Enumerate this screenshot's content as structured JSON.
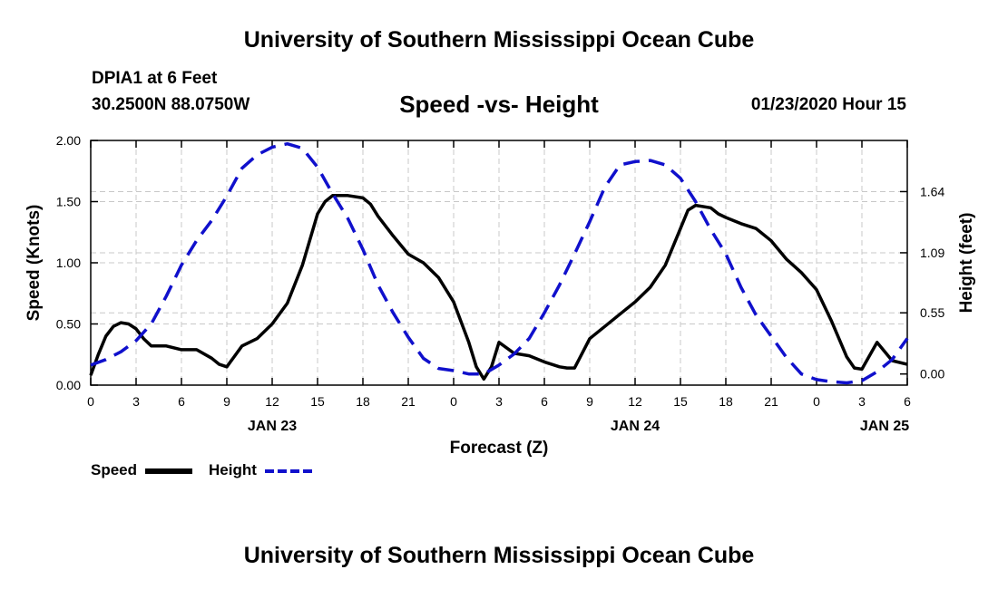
{
  "header": {
    "title": "University of Southern Mississippi Ocean Cube",
    "station": "DPIA1 at 6 Feet",
    "coordinates": "30.2500N 88.0750W",
    "datetime": "01/23/2020 Hour 15"
  },
  "footer": {
    "title": "University of Southern Mississippi Ocean Cube"
  },
  "chart_data": {
    "type": "line",
    "title": "Speed -vs- Height",
    "xlabel": "Forecast (Z)",
    "ylabel_left": "Speed (Knots)",
    "ylabel_right": "Height (feet)",
    "xlim": [
      0,
      54
    ],
    "ylim_left": [
      0,
      2
    ],
    "ylim_right": [
      -0.1,
      2.1
    ],
    "grid": true,
    "x_tick_values": [
      0,
      3,
      6,
      9,
      12,
      15,
      18,
      21,
      24,
      27,
      30,
      33,
      36,
      39,
      42,
      45,
      48,
      51,
      54
    ],
    "x_tick_labels": [
      "0",
      "3",
      "6",
      "9",
      "12",
      "15",
      "18",
      "21",
      "0",
      "3",
      "6",
      "9",
      "12",
      "15",
      "18",
      "21",
      "0",
      "3",
      "6"
    ],
    "y_left_ticks": [
      0,
      0.5,
      1,
      1.5,
      2
    ],
    "y_left_tick_labels": [
      "0.00",
      "0.50",
      "1.00",
      "1.50",
      "2.00"
    ],
    "y_right_ticks": [
      0,
      0.55,
      1.09,
      1.64
    ],
    "y_right_tick_labels": [
      "0.00",
      "0.55",
      "1.09",
      "1.64"
    ],
    "date_labels": [
      {
        "x": 12,
        "label": "JAN 23"
      },
      {
        "x": 36,
        "label": "JAN 24"
      },
      {
        "x": 52.5,
        "label": "JAN 25"
      }
    ],
    "series": [
      {
        "name": "Speed",
        "axis": "left",
        "color": "#000000",
        "style": "solid",
        "points": [
          [
            0,
            0.08
          ],
          [
            0.5,
            0.25
          ],
          [
            1,
            0.4
          ],
          [
            1.5,
            0.48
          ],
          [
            2,
            0.51
          ],
          [
            2.5,
            0.5
          ],
          [
            3,
            0.46
          ],
          [
            3.5,
            0.38
          ],
          [
            4,
            0.32
          ],
          [
            5,
            0.32
          ],
          [
            6,
            0.29
          ],
          [
            7,
            0.29
          ],
          [
            8,
            0.22
          ],
          [
            8.5,
            0.17
          ],
          [
            9,
            0.15
          ],
          [
            10,
            0.32
          ],
          [
            11,
            0.38
          ],
          [
            12,
            0.5
          ],
          [
            13,
            0.67
          ],
          [
            14,
            0.98
          ],
          [
            15,
            1.4
          ],
          [
            15.5,
            1.5
          ],
          [
            16,
            1.55
          ],
          [
            17,
            1.55
          ],
          [
            18,
            1.53
          ],
          [
            18.5,
            1.48
          ],
          [
            19,
            1.38
          ],
          [
            20,
            1.22
          ],
          [
            21,
            1.07
          ],
          [
            22,
            1.0
          ],
          [
            23,
            0.88
          ],
          [
            24,
            0.68
          ],
          [
            25,
            0.35
          ],
          [
            25.5,
            0.15
          ],
          [
            26,
            0.05
          ],
          [
            26.5,
            0.15
          ],
          [
            27,
            0.35
          ],
          [
            28,
            0.26
          ],
          [
            29,
            0.24
          ],
          [
            30,
            0.19
          ],
          [
            31,
            0.15
          ],
          [
            31.5,
            0.14
          ],
          [
            32,
            0.14
          ],
          [
            33,
            0.38
          ],
          [
            34,
            0.48
          ],
          [
            35,
            0.58
          ],
          [
            36,
            0.68
          ],
          [
            37,
            0.8
          ],
          [
            38,
            0.98
          ],
          [
            39,
            1.28
          ],
          [
            39.5,
            1.43
          ],
          [
            40,
            1.47
          ],
          [
            41,
            1.45
          ],
          [
            41.5,
            1.4
          ],
          [
            42,
            1.37
          ],
          [
            43,
            1.32
          ],
          [
            44,
            1.28
          ],
          [
            45,
            1.18
          ],
          [
            46,
            1.03
          ],
          [
            47,
            0.92
          ],
          [
            48,
            0.78
          ],
          [
            49,
            0.52
          ],
          [
            50,
            0.23
          ],
          [
            50.5,
            0.14
          ],
          [
            51,
            0.13
          ],
          [
            52,
            0.35
          ],
          [
            53,
            0.2
          ],
          [
            54,
            0.17
          ]
        ]
      },
      {
        "name": "Height",
        "axis": "right",
        "color": "#1010cc",
        "style": "dashed",
        "points": [
          [
            0,
            0.08
          ],
          [
            1,
            0.13
          ],
          [
            2,
            0.2
          ],
          [
            3,
            0.3
          ],
          [
            4,
            0.45
          ],
          [
            5,
            0.7
          ],
          [
            6,
            0.98
          ],
          [
            7,
            1.2
          ],
          [
            8,
            1.38
          ],
          [
            9,
            1.6
          ],
          [
            10,
            1.85
          ],
          [
            11,
            1.97
          ],
          [
            12,
            2.04
          ],
          [
            13,
            2.07
          ],
          [
            14,
            2.03
          ],
          [
            15,
            1.86
          ],
          [
            16,
            1.62
          ],
          [
            17,
            1.4
          ],
          [
            18,
            1.12
          ],
          [
            19,
            0.8
          ],
          [
            20,
            0.55
          ],
          [
            21,
            0.33
          ],
          [
            22,
            0.14
          ],
          [
            23,
            0.05
          ],
          [
            24,
            0.03
          ],
          [
            25,
            0.0
          ],
          [
            26,
            0.0
          ],
          [
            27,
            0.08
          ],
          [
            28,
            0.18
          ],
          [
            29,
            0.32
          ],
          [
            30,
            0.55
          ],
          [
            31,
            0.8
          ],
          [
            32,
            1.08
          ],
          [
            33,
            1.37
          ],
          [
            34,
            1.68
          ],
          [
            35,
            1.88
          ],
          [
            36,
            1.91
          ],
          [
            37,
            1.92
          ],
          [
            38,
            1.88
          ],
          [
            39,
            1.76
          ],
          [
            40,
            1.55
          ],
          [
            41,
            1.3
          ],
          [
            42,
            1.08
          ],
          [
            43,
            0.78
          ],
          [
            44,
            0.53
          ],
          [
            45,
            0.34
          ],
          [
            46,
            0.15
          ],
          [
            47,
            0.0
          ],
          [
            48,
            -0.05
          ],
          [
            49,
            -0.07
          ],
          [
            50,
            -0.08
          ],
          [
            51,
            -0.06
          ],
          [
            52,
            0.02
          ],
          [
            53,
            0.13
          ],
          [
            54,
            0.32
          ]
        ]
      }
    ],
    "legend": [
      {
        "label": "Speed",
        "color": "#000000",
        "style": "solid"
      },
      {
        "label": "Height",
        "color": "#1010cc",
        "style": "dashed"
      }
    ]
  }
}
